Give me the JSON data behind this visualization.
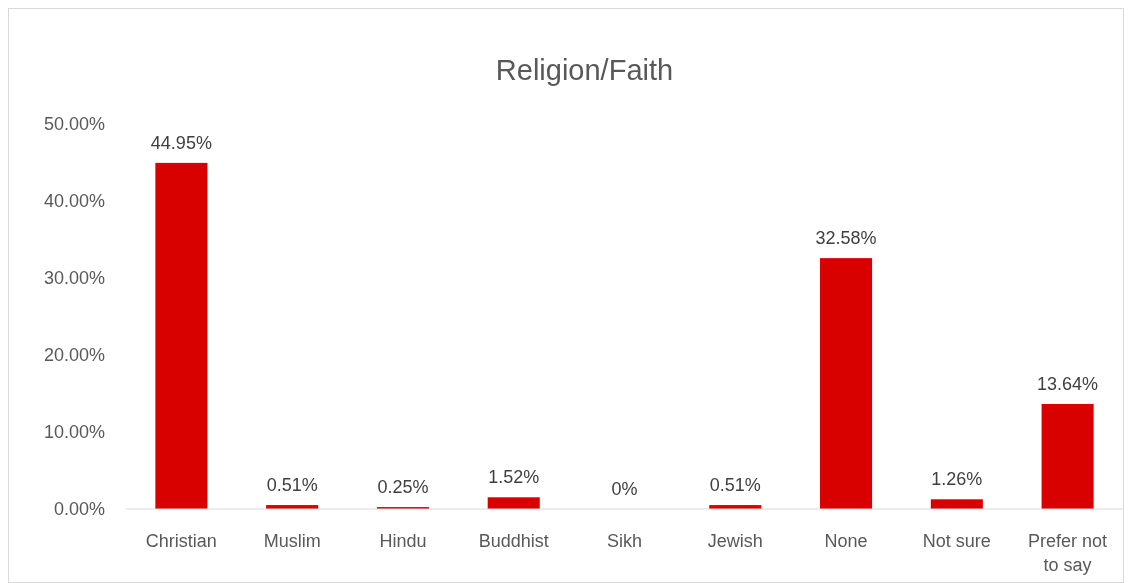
{
  "chart_data": {
    "type": "bar",
    "title": "Religion/Faith",
    "categories": [
      "Christian",
      "Muslim",
      "Hindu",
      "Buddhist",
      "Sikh",
      "Jewish",
      "None",
      "Not sure",
      "Prefer not to say"
    ],
    "values": [
      44.95,
      0.51,
      0.25,
      1.52,
      0,
      0.51,
      32.58,
      1.26,
      13.64
    ],
    "value_labels": [
      "44.95%",
      "0.51%",
      "0.25%",
      "1.52%",
      "0%",
      "0.51%",
      "32.58%",
      "1.26%",
      "13.64%"
    ],
    "color": "#d90000",
    "ylim": [
      0,
      50
    ],
    "yticks": [
      {
        "value": 0,
        "label": "0.00%"
      },
      {
        "value": 10,
        "label": "10.00%"
      },
      {
        "value": 20,
        "label": "20.00%"
      },
      {
        "value": 30,
        "label": "30.00%"
      },
      {
        "value": 40,
        "label": "40.00%"
      },
      {
        "value": 50,
        "label": "50.00%"
      }
    ],
    "grid": false
  }
}
